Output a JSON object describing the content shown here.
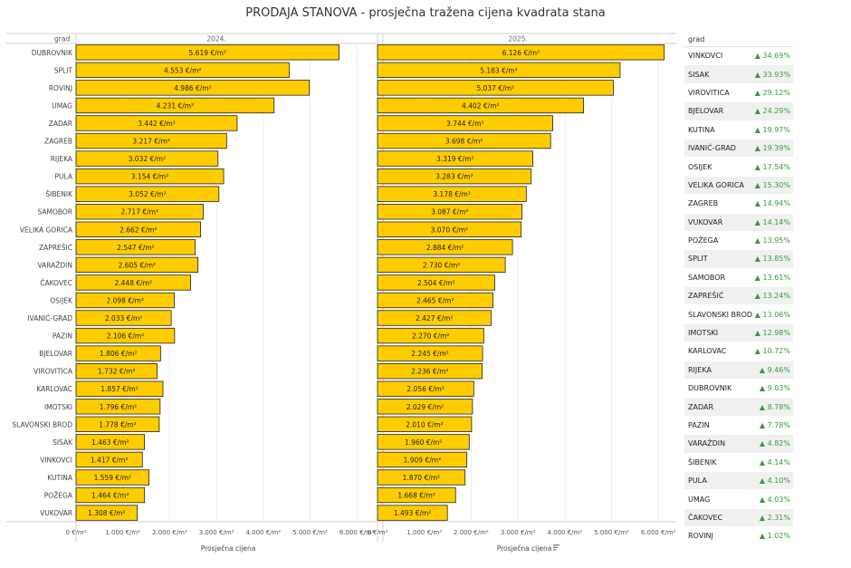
{
  "title": "PRODAJA STANOVA  - prosječna tražena cijena kvadrata stana",
  "colors": {
    "bar": "#FFCC00",
    "bar_border": "#222222",
    "positive": "#3a9a3a"
  },
  "chart_data": {
    "type": "bar",
    "orientation": "horizontal",
    "row_header": "grad",
    "categories": [
      "DUBROVNIK",
      "SPLIT",
      "ROVINJ",
      "UMAG",
      "ZADAR",
      "ZAGREB",
      "RIJEKA",
      "PULA",
      "ŠIBENIK",
      "SAMOBOR",
      "VELIKA GORICA",
      "ZAPREŠIĆ",
      "VARAŽDIN",
      "ČAKOVEC",
      "OSIJEK",
      "IVANIĆ-GRAD",
      "PAZIN",
      "BJELOVAR",
      "VIROVITICA",
      "KARLOVAC",
      "IMOTSKI",
      "SLAVONSKI BROD",
      "SISAK",
      "VINKOVCI",
      "KUTINA",
      "POŽEGA",
      "VUKOVAR"
    ],
    "series": [
      {
        "name": "2024.",
        "values": [
          5619,
          4553,
          4986,
          4231,
          3442,
          3217,
          3032,
          3154,
          3052,
          2717,
          2662,
          2547,
          2605,
          2448,
          2098,
          2033,
          2106,
          1806,
          1732,
          1857,
          1796,
          1778,
          1463,
          1417,
          1559,
          1464,
          1308
        ],
        "labels": [
          "5.619 €/m²",
          "4.553 €/m²",
          "4.986 €/m²",
          "4.231 €/m²",
          "3.442 €/m²",
          "3.217 €/m²",
          "3.032 €/m²",
          "3.154 €/m²",
          "3.052 €/m²",
          "2.717 €/m²",
          "2.662 €/m²",
          "2.547 €/m²",
          "2.605 €/m²",
          "2.448 €/m²",
          "2.098 €/m²",
          "2.033 €/m²",
          "2.106 €/m²",
          "1.806 €/m²",
          "1.732 €/m²",
          "1.857 €/m²",
          "1.796 €/m²",
          "1.778 €/m²",
          "1.463 €/m²",
          "1.417 €/m²",
          "1.559 €/m²",
          "1.464 €/m²",
          "1.308 €/m²"
        ]
      },
      {
        "name": "2025.",
        "values": [
          6126,
          5183,
          5037,
          4402,
          3744,
          3698,
          3319,
          3283,
          3178,
          3087,
          3070,
          2884,
          2730,
          2504,
          2465,
          2427,
          2270,
          2245,
          2236,
          2056,
          2029,
          2010,
          1960,
          1909,
          1870,
          1668,
          1493
        ],
        "labels": [
          "6.126 €/m²",
          "5.183 €/m²",
          "5.037 €/m²",
          "4.402 €/m²",
          "3.744 €/m²",
          "3.698 €/m²",
          "3.319 €/m²",
          "3.283 €/m²",
          "3.178 €/m²",
          "3.087 €/m²",
          "3.070 €/m²",
          "2.884 €/m²",
          "2.730 €/m²",
          "2.504 €/m²",
          "2.465 €/m²",
          "2.427 €/m²",
          "2.270 €/m²",
          "2.245 €/m²",
          "2.236 €/m²",
          "2.056 €/m²",
          "2.029 €/m²",
          "2.010 €/m²",
          "1.960 €/m²",
          "1.909 €/m²",
          "1.870 €/m²",
          "1.668 €/m²",
          "1.493 €/m²"
        ]
      }
    ],
    "xlim": [
      0,
      6500
    ],
    "x_ticks": [
      0,
      1000,
      2000,
      3000,
      4000,
      5000,
      6000
    ],
    "x_tick_labels": [
      "0 €/m²",
      "1.000 €/m²",
      "2.000 €/m²",
      "3.000 €/m²",
      "4.000 €/m²",
      "5.000 €/m²",
      "6.000 €/m²"
    ],
    "xlabels": [
      "Prosječna cijena",
      "Prosječna cijena"
    ],
    "sort_icon": "sort-descending-icon",
    "grid": true
  },
  "change_table": {
    "header": "grad",
    "rows": [
      {
        "city": "VINKOVCI",
        "change": "▲ 34.69%"
      },
      {
        "city": "SISAK",
        "change": "▲ 33.93%"
      },
      {
        "city": "VIROVITICA",
        "change": "▲ 29.12%"
      },
      {
        "city": "BJELOVAR",
        "change": "▲ 24.29%"
      },
      {
        "city": "KUTINA",
        "change": "▲ 19.97%"
      },
      {
        "city": "IVANIĆ-GRAD",
        "change": "▲ 19.39%"
      },
      {
        "city": "OSIJEK",
        "change": "▲ 17.54%"
      },
      {
        "city": "VELIKA GORICA",
        "change": "▲ 15.30%"
      },
      {
        "city": "ZAGREB",
        "change": "▲ 14.94%"
      },
      {
        "city": "VUKOVAR",
        "change": "▲ 14.14%"
      },
      {
        "city": "POŽEGA",
        "change": "▲ 13.95%"
      },
      {
        "city": "SPLIT",
        "change": "▲ 13.85%"
      },
      {
        "city": "SAMOBOR",
        "change": "▲ 13.61%"
      },
      {
        "city": "ZAPREŠIĆ",
        "change": "▲ 13.24%"
      },
      {
        "city": "SLAVONSKI BROD",
        "change": "▲ 13.06%"
      },
      {
        "city": "IMOTSKI",
        "change": "▲ 12.98%"
      },
      {
        "city": "KARLOVAC",
        "change": "▲ 10.72%"
      },
      {
        "city": "RIJEKA",
        "change": "▲ 9.46%"
      },
      {
        "city": "DUBROVNIK",
        "change": "▲ 9.03%"
      },
      {
        "city": "ZADAR",
        "change": "▲ 8.78%"
      },
      {
        "city": "PAZIN",
        "change": "▲ 7.78%"
      },
      {
        "city": "VARAŽDIN",
        "change": "▲ 4.82%"
      },
      {
        "city": "ŠIBENIK",
        "change": "▲ 4.14%"
      },
      {
        "city": "PULA",
        "change": "▲ 4.10%"
      },
      {
        "city": "UMAG",
        "change": "▲ 4.03%"
      },
      {
        "city": "ČAKOVEC",
        "change": "▲ 2.31%"
      },
      {
        "city": "ROVINJ",
        "change": "▲ 1.02%"
      }
    ]
  }
}
